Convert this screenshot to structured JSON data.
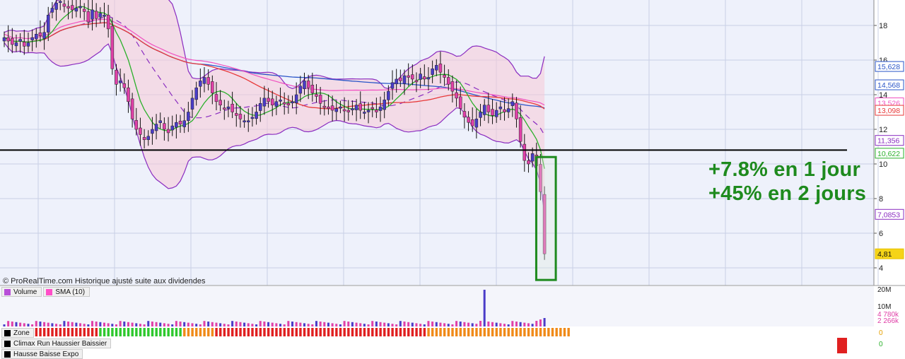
{
  "source_text": "© ProRealTime.com  Historique ajusté suite aux dividendes",
  "annotations": [
    "+7.8% en 1 jour",
    "+45% en 2 jours"
  ],
  "volume_legend": [
    {
      "label": "Volume",
      "color": "#b84fd8"
    },
    {
      "label": "SMA (10)",
      "color": "#ff4fc8"
    }
  ],
  "indicator_labels": [
    "Zone",
    "Climax Run Haussier Baissier",
    "Hausse Baisse Expo"
  ],
  "colors": {
    "bull_candle": "#4a3cc8",
    "bear_candle": "#e040a8",
    "bollinger": "#8a2cc0",
    "sma_green": "#2ab02a",
    "sma_red": "#e83a3a",
    "sma_pink": "#f050c0",
    "sma_blue": "#2a55c8",
    "annotation": "#1e8a1e",
    "zone_red": "#e02020",
    "zone_green": "#2ec82e",
    "zone_orange": "#f08a18"
  },
  "chart_data": {
    "type": "candlestick",
    "y_axis": {
      "ticks": [
        4,
        6,
        8,
        10,
        12,
        14,
        16,
        18
      ],
      "range": [
        3,
        19
      ]
    },
    "support_level": 10.8,
    "price_labels": [
      {
        "value": "15,628",
        "color": "#2a55c8"
      },
      {
        "value": "14,568",
        "color": "#2a55c8"
      },
      {
        "value": "13,526",
        "color": "#f050c0"
      },
      {
        "value": "13,098",
        "color": "#e83a3a"
      },
      {
        "value": "11,356",
        "color": "#8a2cc0"
      },
      {
        "value": "10,622",
        "color": "#2ab02a"
      },
      {
        "value": "7,0853",
        "color": "#8a2cc0"
      },
      {
        "value": "4,81",
        "color": "#e6c000"
      }
    ],
    "closes": [
      17.3,
      17.1,
      16.9,
      17.0,
      17.2,
      16.8,
      17.0,
      17.3,
      17.5,
      17.4,
      17.6,
      18.6,
      19.0,
      19.3,
      19.4,
      19.1,
      19.0,
      18.9,
      19.0,
      19.1,
      18.8,
      18.2,
      18.9,
      18.4,
      18.7,
      18.6,
      17.8,
      15.5,
      14.6,
      14.8,
      14.4,
      13.6,
      12.6,
      12.0,
      11.7,
      11.4,
      11.6,
      12.0,
      12.3,
      12.5,
      12.0,
      11.8,
      12.2,
      12.4,
      12.3,
      12.5,
      13.0,
      13.8,
      14.4,
      14.8,
      15.0,
      14.6,
      14.1,
      13.6,
      13.4,
      13.2,
      13.3,
      13.0,
      12.8,
      12.6,
      12.5,
      12.5,
      12.7,
      13.0,
      13.5,
      13.8,
      13.6,
      13.4,
      13.6,
      13.7,
      13.5,
      13.4,
      13.6,
      14.0,
      14.5,
      14.8,
      14.4,
      14.1,
      13.9,
      13.5,
      13.3,
      13.2,
      13.1,
      13.2,
      13.3,
      13.1,
      13.0,
      13.2,
      13.4,
      13.1,
      13.0,
      13.1,
      13.2,
      13.0,
      13.3,
      13.7,
      14.2,
      14.7,
      14.9,
      14.8,
      15.1,
      15.0,
      14.9,
      14.8,
      15.2,
      14.9,
      15.0,
      15.5,
      15.7,
      15.3,
      15.0,
      14.6,
      14.2,
      13.8,
      13.2,
      12.7,
      12.4,
      12.2,
      12.6,
      13.0,
      13.4,
      13.0,
      12.8,
      13.1,
      13.3,
      13.0,
      13.2,
      13.6,
      12.6,
      11.3,
      10.2,
      10.0,
      10.6,
      9.9,
      8.4,
      4.81
    ],
    "volume_axis_labels": [
      "20M",
      "10M",
      "4 780k",
      "2 266k"
    ],
    "indicator_value": "0"
  }
}
